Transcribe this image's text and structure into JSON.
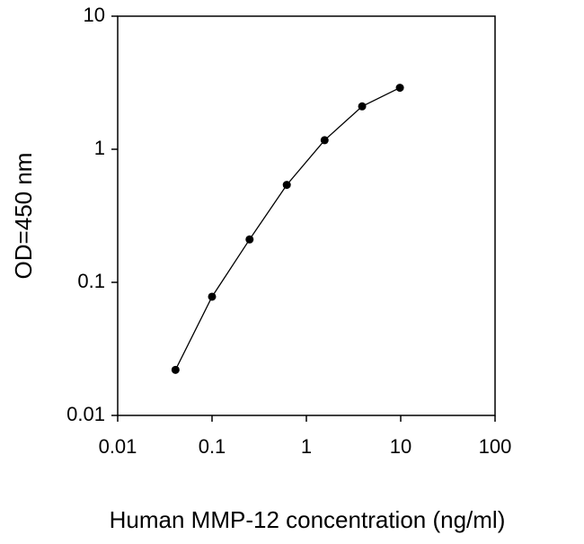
{
  "chart_data": {
    "type": "line",
    "x_label": "Human MMP-12 concentration (ng/ml)",
    "y_label": "OD=450 nm",
    "x": [
      0.041,
      0.1,
      0.25,
      0.62,
      1.56,
      3.9,
      9.8
    ],
    "series": [
      {
        "color": "#000000",
        "values": [
          0.022,
          0.078,
          0.21,
          0.54,
          1.17,
          2.1,
          2.9
        ]
      }
    ],
    "xscale": "log",
    "yscale": "log",
    "xlim": [
      0.01,
      100
    ],
    "ylim": [
      0.01,
      10
    ],
    "xticks": [
      0.01,
      0.1,
      1,
      10,
      100
    ],
    "yticks": [
      0.01,
      0.1,
      1,
      10
    ]
  }
}
